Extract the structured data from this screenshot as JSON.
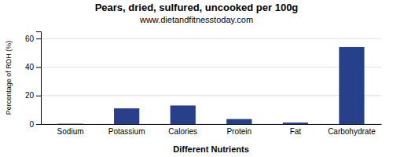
{
  "chart_data": {
    "type": "bar",
    "title": "Pears, dried, sulfured, uncooked per 100g",
    "subtitle": "www.dietandfitnesstoday.com",
    "xlabel": "Different Nutrients",
    "ylabel": "Percentage of RDH (%)",
    "categories": [
      "Sodium",
      "Potassium",
      "Calories",
      "Protein",
      "Fat",
      "Carbohydrate"
    ],
    "values": [
      0.2,
      11,
      13,
      3.5,
      1.0,
      54
    ],
    "color": "#27408B",
    "ylim": [
      0,
      65
    ],
    "yticks": [
      0,
      20,
      40,
      60
    ],
    "grid": true
  }
}
